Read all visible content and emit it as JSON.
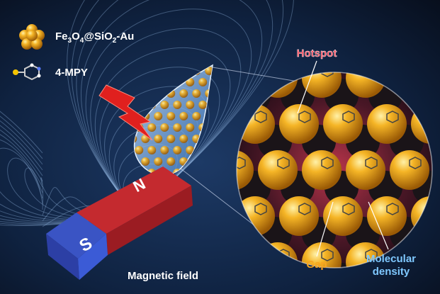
{
  "legend": {
    "items": [
      {
        "formula_parts": [
          "Fe",
          "3",
          "O",
          "4",
          "@SiO",
          "2",
          "-Au"
        ]
      },
      {
        "label": "4-MPY"
      }
    ]
  },
  "magnet": {
    "north": "N",
    "south": "S"
  },
  "caption": "Magnetic field",
  "callouts": {
    "hotspot": "Hotspot",
    "gap": "Gap",
    "molecular_density": [
      "Molecular",
      "density"
    ]
  }
}
